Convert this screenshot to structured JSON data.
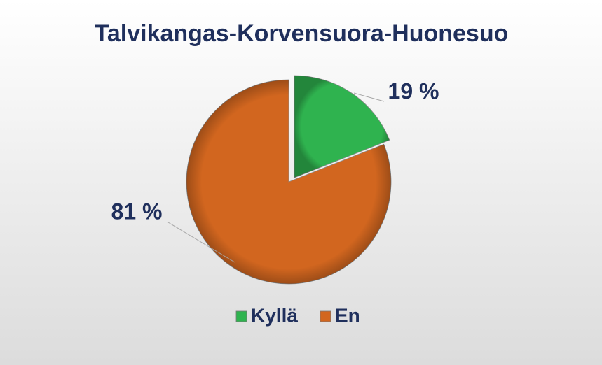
{
  "chart_data": {
    "type": "pie",
    "title": "Talvikangas-Korvensuora-Huonesuo",
    "categories": [
      "Kyllä",
      "En"
    ],
    "values": [
      19,
      81
    ],
    "value_labels": [
      "19 %",
      "81 %"
    ],
    "colors": [
      "#2fb34f",
      "#d2661f"
    ],
    "legend": "bottom"
  }
}
